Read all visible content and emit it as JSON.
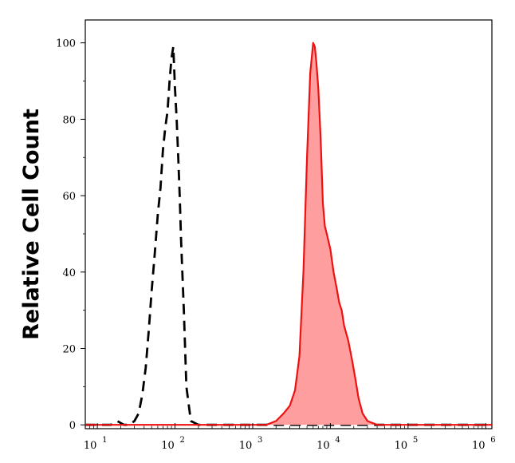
{
  "chart_data": {
    "type": "area",
    "ylabel": "Relative Cell Count",
    "xlabel": "",
    "x_scale": "log",
    "xlim": [
      7,
      1200000
    ],
    "ylim": [
      -1,
      106
    ],
    "x_ticks": [
      {
        "base": "10",
        "exp": "1",
        "value": 10
      },
      {
        "base": "10",
        "exp": "2",
        "value": 100
      },
      {
        "base": "10",
        "exp": "3",
        "value": 1000
      },
      {
        "base": "10",
        "exp": "4",
        "value": 10000
      },
      {
        "base": "10",
        "exp": "5",
        "value": 100000
      },
      {
        "base": "10",
        "exp": "6",
        "value": 1000000
      }
    ],
    "y_ticks": [
      {
        "label": "0",
        "value": 0
      },
      {
        "label": "20",
        "value": 20
      },
      {
        "label": "40",
        "value": 40
      },
      {
        "label": "60",
        "value": 60
      },
      {
        "label": "80",
        "value": 80
      },
      {
        "label": "100",
        "value": 100
      }
    ],
    "grid": false,
    "series": [
      {
        "style": "dashed",
        "color": "#000000",
        "fill": "none",
        "x": [
          7,
          15,
          18,
          22,
          26,
          30,
          34,
          38,
          42,
          46,
          50,
          55,
          60,
          65,
          70,
          75,
          80,
          85,
          90,
          95,
          100,
          105,
          110,
          115,
          120,
          130,
          140,
          160,
          200,
          1200000
        ],
        "y": [
          0,
          0,
          1,
          0,
          0,
          1,
          3,
          8,
          15,
          25,
          35,
          45,
          55,
          62,
          72,
          78,
          82,
          90,
          96,
          99,
          88,
          80,
          70,
          60,
          48,
          30,
          10,
          1,
          0,
          0
        ]
      },
      {
        "style": "solid",
        "color": "#ee1111",
        "fill": "#ff9e9e",
        "x": [
          7,
          1500,
          2000,
          2500,
          3000,
          3500,
          4000,
          4500,
          5000,
          5500,
          6000,
          6300,
          6600,
          7000,
          7500,
          8000,
          8500,
          9000,
          10000,
          11000,
          12000,
          13000,
          14000,
          15000,
          17000,
          19000,
          21000,
          23000,
          26000,
          30000,
          40000,
          1200000
        ],
        "y": [
          0,
          0,
          1,
          3,
          5,
          9,
          18,
          40,
          70,
          92,
          100,
          99,
          95,
          88,
          75,
          58,
          52,
          50,
          46,
          40,
          36,
          32,
          30,
          26,
          22,
          17,
          12,
          7,
          3,
          1,
          0,
          0
        ]
      }
    ]
  }
}
